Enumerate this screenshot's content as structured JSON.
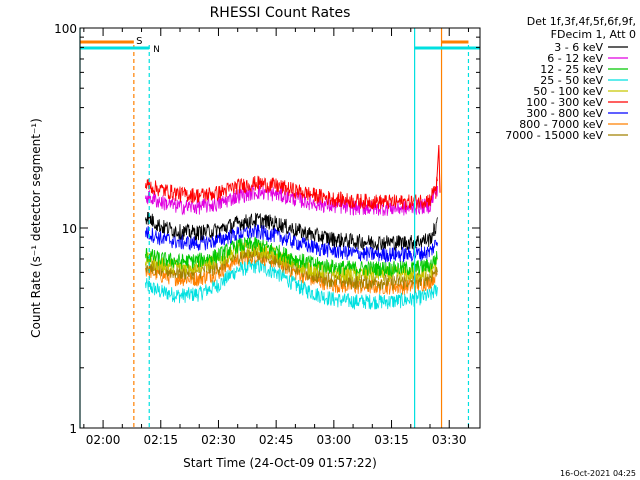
{
  "chart_data": {
    "type": "line",
    "title": "RHESSI Count Rates",
    "xlabel": "Start Time (24-Oct-09 01:57:22)",
    "ylabel": "Count Rate (s⁻¹ detector segment⁻¹)",
    "yscale": "log",
    "ylim": [
      1,
      100
    ],
    "xlim_minutes_after_0200": [
      -6,
      98
    ],
    "x_ticks": [
      "02:00",
      "02:15",
      "02:30",
      "02:45",
      "03:00",
      "03:15",
      "03:30"
    ],
    "y_ticks": [
      "1",
      "10",
      "100"
    ],
    "legend_header": [
      "Det 1f,3f,4f,5f,6f,9f,",
      "FDecim 1, Att 0"
    ],
    "legend_position": "top-right, outside plot",
    "footer_date": "16-Oct-2021 04:25",
    "flag_labels": [
      "S",
      "N"
    ],
    "series": [
      {
        "name": "3 - 6 keV",
        "color": "#000000",
        "x": [
          11,
          15,
          20,
          25,
          30,
          35,
          40,
          45,
          50,
          55,
          60,
          65,
          70,
          75,
          80,
          85,
          87
        ],
        "y": [
          11.5,
          10.2,
          9.6,
          9.5,
          9.8,
          10.6,
          11.0,
          10.6,
          9.8,
          9.2,
          8.8,
          8.6,
          8.5,
          8.5,
          8.5,
          8.8,
          10.5
        ]
      },
      {
        "name": "6 - 12 keV",
        "color": "#e000e0",
        "x": [
          11,
          15,
          20,
          25,
          30,
          35,
          40,
          45,
          50,
          55,
          60,
          65,
          70,
          75,
          80,
          85,
          87
        ],
        "y": [
          14.5,
          13.5,
          12.8,
          12.8,
          13.2,
          14.5,
          15.2,
          14.8,
          14.0,
          13.3,
          12.9,
          12.7,
          12.6,
          12.6,
          12.6,
          13.0,
          16.0
        ]
      },
      {
        "name": "12 - 25 keV",
        "color": "#00c800",
        "x": [
          11,
          15,
          20,
          25,
          30,
          35,
          40,
          45,
          50,
          55,
          60,
          65,
          70,
          75,
          80,
          85,
          87
        ],
        "y": [
          7.4,
          7.0,
          6.8,
          6.9,
          7.3,
          8.2,
          8.3,
          7.7,
          7.0,
          6.6,
          6.4,
          6.3,
          6.3,
          6.3,
          6.3,
          6.5,
          7.2
        ]
      },
      {
        "name": "25 - 50 keV",
        "color": "#00e0e0",
        "x": [
          11,
          15,
          20,
          25,
          30,
          35,
          40,
          45,
          50,
          55,
          60,
          65,
          70,
          75,
          80,
          85,
          87
        ],
        "y": [
          5.2,
          4.8,
          4.6,
          4.7,
          5.2,
          6.2,
          6.5,
          6.0,
          5.2,
          4.7,
          4.4,
          4.3,
          4.3,
          4.3,
          4.4,
          4.6,
          5.0
        ]
      },
      {
        "name": "50 - 100 keV",
        "color": "#c8c800",
        "x": [
          11,
          15,
          20,
          25,
          30,
          35,
          40,
          45,
          50,
          55,
          60,
          65,
          70,
          75,
          80,
          85,
          87
        ],
        "y": [
          7.0,
          6.6,
          6.4,
          6.5,
          6.9,
          7.8,
          7.9,
          7.3,
          6.6,
          6.2,
          6.0,
          5.9,
          5.9,
          5.9,
          5.9,
          6.1,
          6.8
        ]
      },
      {
        "name": "100 - 300 keV",
        "color": "#ff0000",
        "x": [
          11,
          15,
          20,
          25,
          30,
          35,
          40,
          45,
          50,
          55,
          60,
          65,
          70,
          75,
          80,
          85,
          87
        ],
        "y": [
          16.5,
          15.6,
          14.8,
          14.6,
          15.0,
          16.2,
          16.8,
          16.3,
          15.4,
          14.6,
          14.0,
          13.7,
          13.6,
          13.5,
          13.5,
          13.9,
          17.0
        ]
      },
      {
        "name": "300 - 800 keV",
        "color": "#0000ff",
        "x": [
          11,
          15,
          20,
          25,
          30,
          35,
          40,
          45,
          50,
          55,
          60,
          65,
          70,
          75,
          80,
          85,
          87
        ],
        "y": [
          9.6,
          8.9,
          8.5,
          8.4,
          8.7,
          9.4,
          9.6,
          9.2,
          8.5,
          8.0,
          7.7,
          7.5,
          7.4,
          7.4,
          7.4,
          7.6,
          8.6
        ]
      },
      {
        "name": "800 - 7000 keV",
        "color": "#ff8000",
        "x": [
          11,
          15,
          20,
          25,
          30,
          35,
          40,
          45,
          50,
          55,
          60,
          65,
          70,
          75,
          80,
          85,
          87
        ],
        "y": [
          6.2,
          5.8,
          5.6,
          5.6,
          6.0,
          7.0,
          7.3,
          6.8,
          6.0,
          5.5,
          5.2,
          5.1,
          5.1,
          5.1,
          5.1,
          5.4,
          6.0
        ]
      },
      {
        "name": "7000 - 15000 keV",
        "color": "#a08000",
        "x": [
          11,
          15,
          20,
          25,
          30,
          35,
          40,
          45,
          50,
          55,
          60,
          65,
          70,
          75,
          80,
          85,
          87
        ],
        "y": [
          6.6,
          6.2,
          6.0,
          6.1,
          6.4,
          7.3,
          7.5,
          7.0,
          6.3,
          5.8,
          5.5,
          5.4,
          5.4,
          5.4,
          5.4,
          5.7,
          6.3
        ]
      }
    ]
  }
}
